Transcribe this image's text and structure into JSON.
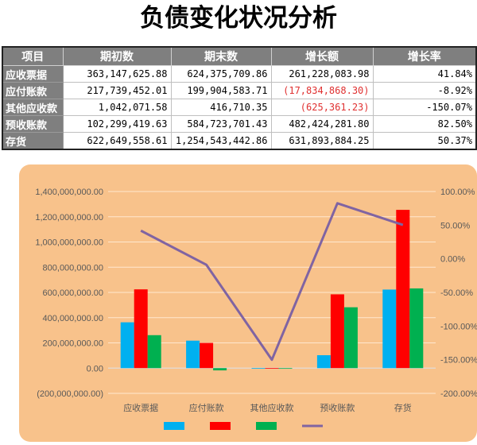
{
  "title": "负债变化状况分析",
  "table": {
    "headers": [
      "项目",
      "期初数",
      "期末数",
      "增长额",
      "增长率"
    ],
    "rows": [
      {
        "name": "应收票据",
        "start": "363,147,625.88",
        "end": "624,375,709.86",
        "growth": "261,228,083.98",
        "rate": "41.84%",
        "neg": false
      },
      {
        "name": "应付账款",
        "start": "217,739,452.01",
        "end": "199,904,583.71",
        "growth": "(17,834,868.30)",
        "rate": "-8.92%",
        "neg": true
      },
      {
        "name": "其他应收款",
        "start": "1,042,071.58",
        "end": "416,710.35",
        "growth": "(625,361.23)",
        "rate": "-150.07%",
        "neg": true
      },
      {
        "name": "预收账款",
        "start": "102,299,419.63",
        "end": "584,723,701.43",
        "growth": "482,424,281.80",
        "rate": "82.50%",
        "neg": false
      },
      {
        "name": "存货",
        "start": "622,649,558.61",
        "end": "1,254,543,442.86",
        "growth": "631,893,884.25",
        "rate": "50.37%",
        "neg": false
      }
    ]
  },
  "chart_data": {
    "type": "bar",
    "categories": [
      "应收票据",
      "应付账款",
      "其他应收款",
      "预收账款",
      "存货"
    ],
    "series": [
      {
        "values": [
          363147625.88,
          217739452.01,
          1042071.58,
          102299419.63,
          622649558.61
        ],
        "color": "#00b0f0",
        "axis": "left"
      },
      {
        "values": [
          624375709.86,
          199904583.71,
          416710.35,
          584723701.43,
          1254543442.86
        ],
        "color": "#ff0000",
        "axis": "left"
      },
      {
        "values": [
          261228083.98,
          -17834868.3,
          -625361.23,
          482424281.8,
          631893884.25
        ],
        "color": "#00b050",
        "axis": "left"
      },
      {
        "type": "line",
        "values": [
          41.84,
          -8.92,
          -150.07,
          82.5,
          50.37
        ],
        "color": "#8064a2",
        "axis": "right"
      }
    ],
    "ylim": [
      -200000000,
      1400000000
    ],
    "y_ticks": [
      "(200,000,000.00)",
      "0.00",
      "200,000,000.00",
      "400,000,000.00",
      "600,000,000.00",
      "800,000,000.00",
      "1,000,000,000.00",
      "1,200,000,000.00",
      "1,400,000,000.00"
    ],
    "y2lim": [
      -200,
      100
    ],
    "y2_ticks": [
      "-200.00%",
      "-150.00%",
      "-100.00%",
      "-50.00%",
      "0.00%",
      "50.00%",
      "100.00%"
    ],
    "grid": true,
    "legend_position": "bottom",
    "background": "#f8c28b"
  }
}
